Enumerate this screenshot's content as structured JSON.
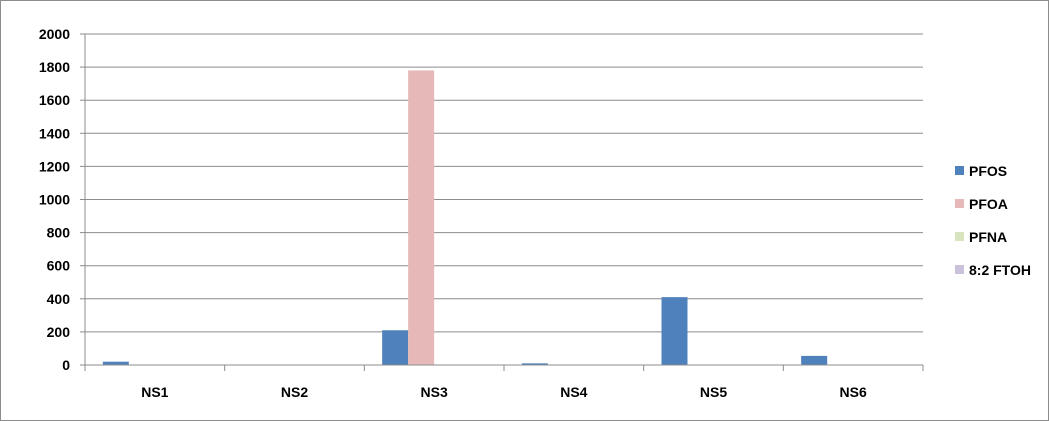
{
  "chart_data": {
    "type": "bar",
    "categories": [
      "NS1",
      "NS2",
      "NS3",
      "NS4",
      "NS5",
      "NS6"
    ],
    "series": [
      {
        "name": "PFOS",
        "color": "#4f81bd",
        "values": [
          20,
          0,
          210,
          10,
          410,
          55
        ]
      },
      {
        "name": "PFOA",
        "color": "#e6b9b8",
        "values": [
          0,
          0,
          1780,
          0,
          0,
          0
        ]
      },
      {
        "name": "PFNA",
        "color": "#d7e4bd",
        "values": [
          0,
          0,
          0,
          0,
          0,
          0
        ]
      },
      {
        "name": "8:2 FTOH",
        "color": "#ccc1da",
        "values": [
          0,
          0,
          0,
          0,
          0,
          0
        ]
      }
    ],
    "y_ticks": [
      "0",
      "200",
      "400",
      "600",
      "800",
      "1000",
      "1200",
      "1400",
      "1600",
      "1800",
      "2000"
    ],
    "ylim": [
      0,
      2000
    ],
    "grid": true,
    "legend_position": "right",
    "title": "",
    "xlabel": "",
    "ylabel": ""
  }
}
